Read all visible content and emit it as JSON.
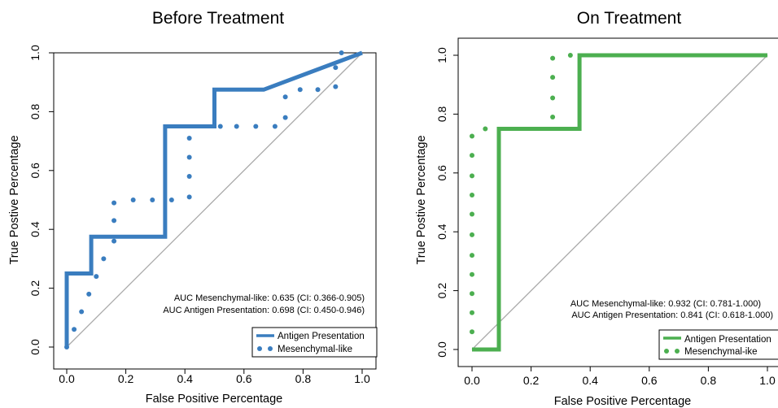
{
  "chart_data": [
    {
      "type": "line",
      "title": "Before Treatment",
      "xlabel": "False Positive Percentage",
      "ylabel": "True Postive Percentage",
      "xlim": [
        0,
        1
      ],
      "ylim": [
        0,
        1
      ],
      "xticks": [
        "0.0",
        "0.2",
        "0.4",
        "0.6",
        "0.8",
        "1.0"
      ],
      "yticks": [
        "0.0",
        "0.2",
        "0.4",
        "0.6",
        "0.8",
        "1.0"
      ],
      "color": "#3a7dbf",
      "diagonal_color": "#aaaaaa",
      "annotations": [
        "AUC Mesenchymal-like: 0.635 (CI: 0.366-0.905)",
        "AUC Antigen Presentation: 0.698 (CI: 0.450-0.946)"
      ],
      "legend_position": "bottom-right",
      "legend": [
        {
          "label": "Antigen Presentation",
          "style": "solid"
        },
        {
          "label": "Mesenchymal-like",
          "style": "dotted"
        }
      ],
      "series": [
        {
          "name": "Antigen Presentation",
          "style": "solid",
          "x": [
            0,
            0,
            0.083,
            0.083,
            0.333,
            0.333,
            0.5,
            0.5,
            0.667,
            1.0
          ],
          "y": [
            0,
            0.25,
            0.25,
            0.375,
            0.375,
            0.75,
            0.75,
            0.875,
            0.875,
            1.0
          ]
        },
        {
          "name": "Mesenchymal-like",
          "style": "dotted",
          "x": [
            0,
            0.025,
            0.05,
            0.075,
            0.1,
            0.125,
            0.16,
            0.16,
            0.16,
            0.225,
            0.29,
            0.355,
            0.415,
            0.415,
            0.415,
            0.415,
            0.52,
            0.575,
            0.64,
            0.705,
            0.74,
            0.74,
            0.79,
            0.85,
            0.91,
            0.91,
            0.93
          ],
          "y": [
            0,
            0.06,
            0.12,
            0.18,
            0.24,
            0.3,
            0.36,
            0.43,
            0.49,
            0.5,
            0.5,
            0.5,
            0.51,
            0.58,
            0.645,
            0.71,
            0.75,
            0.75,
            0.75,
            0.75,
            0.78,
            0.85,
            0.875,
            0.875,
            0.885,
            0.95,
            1.0
          ]
        }
      ]
    },
    {
      "type": "line",
      "title": "On Treatment",
      "xlabel": "False Positive Percentage",
      "ylabel": "True Postive Percentage",
      "xlim": [
        0,
        1
      ],
      "ylim": [
        0,
        1
      ],
      "xticks": [
        "0.0",
        "0.2",
        "0.4",
        "0.6",
        "0.8",
        "1.0"
      ],
      "yticks": [
        "0.0",
        "0.2",
        "0.4",
        "0.6",
        "0.8",
        "1.0"
      ],
      "color": "#4caf50",
      "diagonal_color": "#aaaaaa",
      "annotations": [
        "AUC Mesenchymal-like: 0.932 (CI: 0.781-1.000)",
        "AUC Antigen Presentation: 0.841 (CI: 0.618-1.000)"
      ],
      "legend_position": "bottom-right",
      "legend": [
        {
          "label": "Antigen Presentation",
          "style": "solid"
        },
        {
          "label": "Mesenchymal-ike",
          "style": "dotted"
        }
      ],
      "series": [
        {
          "name": "Antigen Presentation",
          "style": "solid",
          "x": [
            0,
            0.091,
            0.091,
            0.364,
            0.364,
            1.0
          ],
          "y": [
            0,
            0,
            0.75,
            0.75,
            1.0,
            1.0
          ]
        },
        {
          "name": "Mesenchymal-ike",
          "style": "dotted",
          "x": [
            0,
            0,
            0,
            0,
            0,
            0,
            0,
            0,
            0,
            0,
            0,
            0.045,
            0.273,
            0.273,
            0.273,
            0.273,
            0.333
          ],
          "y": [
            0.06,
            0.125,
            0.19,
            0.255,
            0.32,
            0.39,
            0.46,
            0.525,
            0.59,
            0.66,
            0.725,
            0.75,
            0.79,
            0.855,
            0.925,
            0.99,
            1.0
          ]
        }
      ]
    }
  ]
}
